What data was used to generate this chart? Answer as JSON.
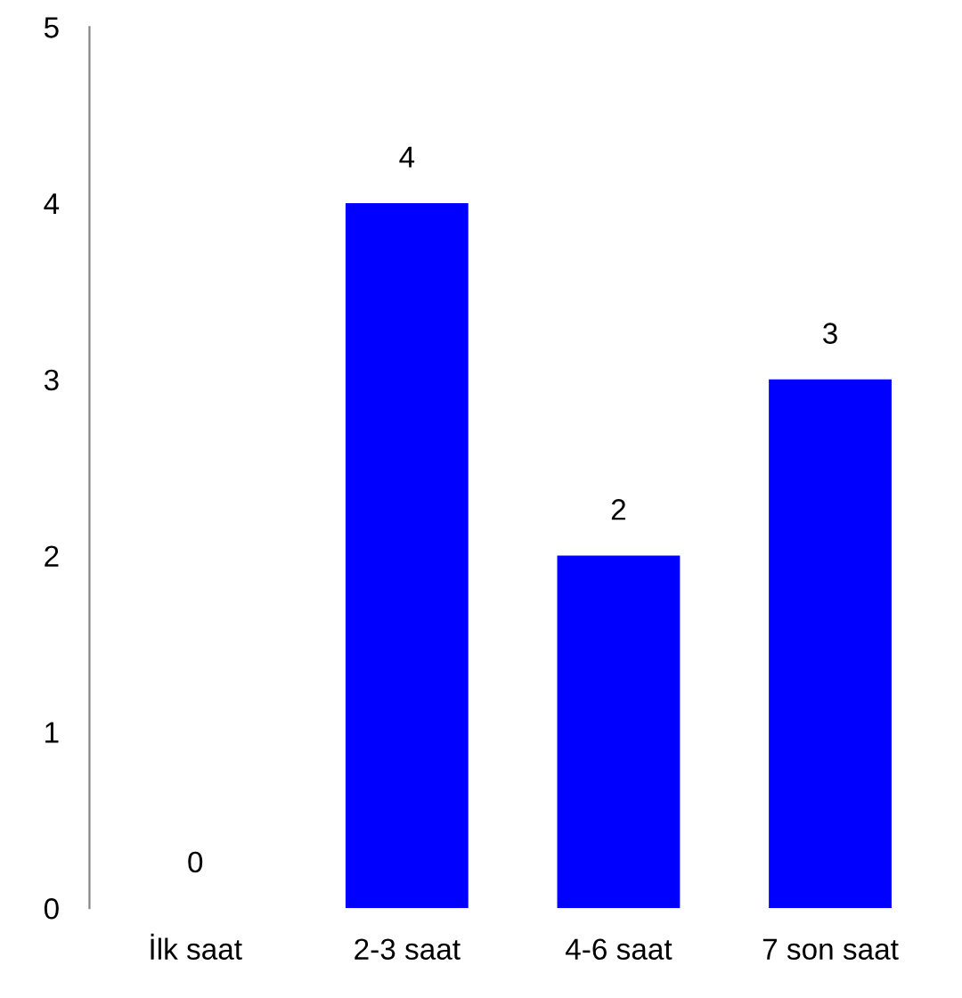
{
  "chart_data": {
    "type": "bar",
    "categories": [
      "İlk saat",
      "2-3 saat",
      "4-6 saat",
      "7 son saat"
    ],
    "values": [
      0,
      4,
      2,
      3
    ],
    "color": "#0000ff",
    "ylim": [
      0,
      5
    ],
    "yticks": [
      0,
      1,
      2,
      3,
      4,
      5
    ],
    "grid": false,
    "data_labels": true,
    "legend": false
  }
}
